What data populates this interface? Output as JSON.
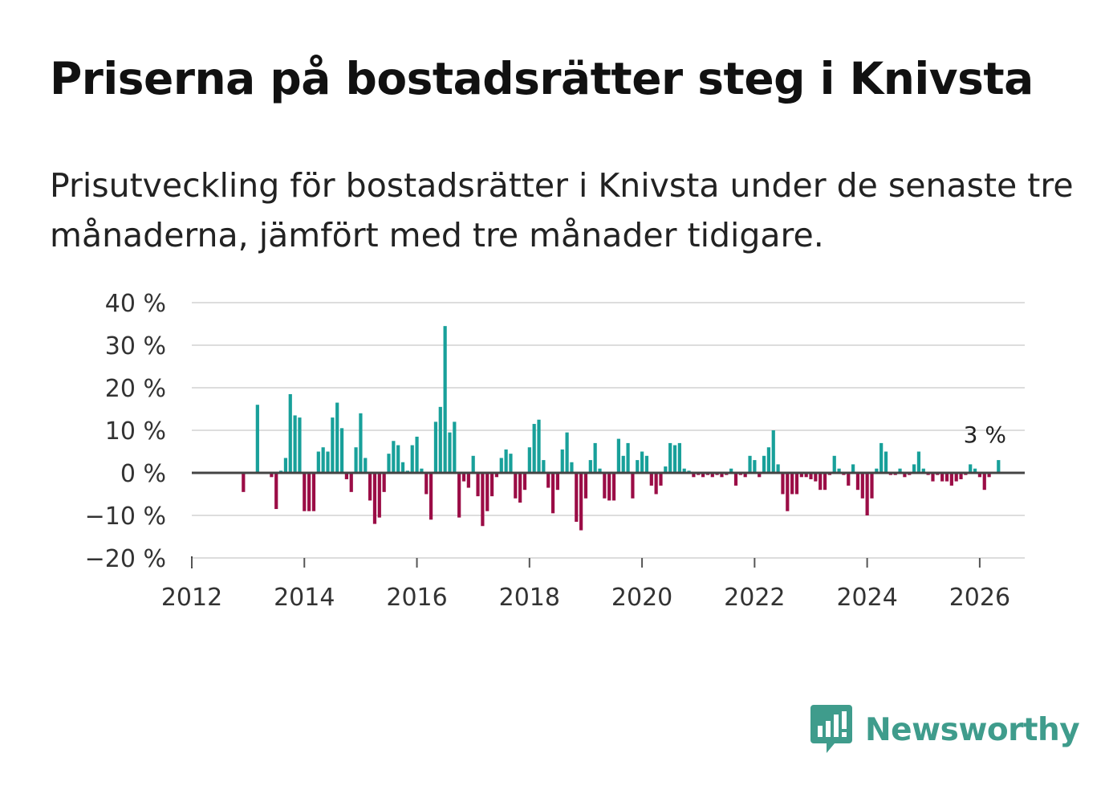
{
  "title": "Priserna på bostadsrätter steg i Knivsta",
  "subtitle": "Prisutveckling för bostadsrätter i Knivsta under de senaste tre månaderna, jämfört med tre månader tidigare.",
  "logo": {
    "text": "Newsworthy",
    "icon": "newsworthy-logo-icon"
  },
  "colors": {
    "positive": "#18a09a",
    "negative": "#9b0d46",
    "grid": "#dddddd",
    "zero_line": "#444444",
    "brand": "#3f9c8c"
  },
  "chart_data": {
    "type": "bar",
    "title": "Priserna på bostadsrätter steg i Knivsta",
    "xlabel": "",
    "ylabel": "",
    "xlim": [
      2012,
      2026.8
    ],
    "ylim": [
      -20,
      40
    ],
    "grid": true,
    "y_ticks": [
      {
        "value": 40,
        "label": "40 %"
      },
      {
        "value": 30,
        "label": "30 %"
      },
      {
        "value": 20,
        "label": "20 %"
      },
      {
        "value": 10,
        "label": "10 %"
      },
      {
        "value": 0,
        "label": "0 %"
      },
      {
        "value": -10,
        "label": "−10 %"
      },
      {
        "value": -20,
        "label": "−20 %"
      }
    ],
    "x_ticks": [
      {
        "value": 2012,
        "label": "2012"
      },
      {
        "value": 2014,
        "label": "2014"
      },
      {
        "value": 2016,
        "label": "2016"
      },
      {
        "value": 2018,
        "label": "2018"
      },
      {
        "value": 2020,
        "label": "2020"
      },
      {
        "value": 2022,
        "label": "2022"
      },
      {
        "value": 2024,
        "label": "2024"
      },
      {
        "value": 2026,
        "label": "2026"
      }
    ],
    "last_value_label": "3 %",
    "series": [
      {
        "name": "Prisutveckling (%)",
        "start_year": 2012.917,
        "step_months": 1,
        "values": [
          -4.5,
          0,
          0,
          16,
          0,
          0,
          -1,
          -8.5,
          0.5,
          3.5,
          18.5,
          13.5,
          13,
          -9,
          -9,
          -9,
          5,
          6,
          5,
          13,
          16.5,
          10.5,
          -1.5,
          -4.5,
          6,
          14,
          3.5,
          -6.5,
          -12,
          -10.5,
          -4.5,
          4.5,
          7.5,
          6.5,
          2.5,
          0.5,
          6.5,
          8.5,
          1,
          -5,
          -11,
          12,
          15.5,
          34.5,
          9.5,
          12,
          -10.5,
          -2,
          -3.5,
          4,
          -5.5,
          -12.5,
          -9,
          -5.5,
          -1,
          3.5,
          5.5,
          4.5,
          -6,
          -7,
          -4,
          6,
          11.5,
          12.5,
          3,
          -3.5,
          -9.5,
          -4,
          5.5,
          9.5,
          2.5,
          -11.5,
          -13.5,
          -6,
          3,
          7,
          1,
          -6,
          -6.5,
          -6.5,
          8,
          4,
          7,
          -6,
          3,
          5,
          4,
          -3,
          -5,
          -3,
          1.5,
          7,
          6.5,
          7,
          1,
          0.5,
          -1,
          -0.5,
          -1,
          -0.5,
          -1,
          -0.5,
          -1,
          -0.5,
          1,
          -3,
          -0.5,
          -1,
          4,
          3,
          -1,
          4,
          6,
          10,
          2,
          -5,
          -9,
          -5,
          -5,
          -1,
          -1,
          -1.5,
          -2,
          -4,
          -4,
          -0.5,
          4,
          1,
          -0.5,
          -3,
          2,
          -4,
          -6,
          -10,
          -6,
          1,
          7,
          5,
          -0.5,
          -0.5,
          1,
          -1,
          -0.5,
          2,
          5,
          1,
          -0.5,
          -2,
          -0.5,
          -2,
          -2,
          -3,
          -2,
          -1.5,
          -0.5,
          2,
          1,
          -1,
          -4,
          -1,
          0,
          3
        ]
      }
    ]
  }
}
